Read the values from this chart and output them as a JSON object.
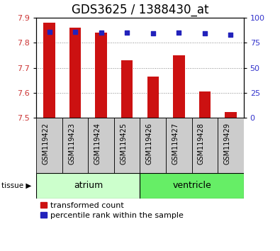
{
  "title": "GDS3625 / 1388430_at",
  "samples": [
    "GSM119422",
    "GSM119423",
    "GSM119424",
    "GSM119425",
    "GSM119426",
    "GSM119427",
    "GSM119428",
    "GSM119429"
  ],
  "transformed_counts": [
    7.88,
    7.86,
    7.84,
    7.73,
    7.665,
    7.75,
    7.605,
    7.525
  ],
  "percentile_ranks": [
    86,
    86,
    85,
    85,
    84,
    85,
    84,
    83
  ],
  "ylim_left": [
    7.5,
    7.9
  ],
  "ylim_right": [
    0,
    100
  ],
  "yticks_left": [
    7.5,
    7.6,
    7.7,
    7.8,
    7.9
  ],
  "yticks_right": [
    0,
    25,
    50,
    75,
    100
  ],
  "tissues": [
    {
      "label": "atrium",
      "start": 0,
      "end": 4,
      "color": "#ccffcc"
    },
    {
      "label": "ventricle",
      "start": 4,
      "end": 8,
      "color": "#66ee66"
    }
  ],
  "bar_color": "#cc1111",
  "dot_color": "#2222bb",
  "bar_width": 0.45,
  "base_value": 7.5,
  "tissue_label": "tissue",
  "legend_bar_label": "transformed count",
  "legend_dot_label": "percentile rank within the sample",
  "grid_color": "#888888",
  "plot_bg": "#ffffff",
  "tick_label_color_left": "#cc3333",
  "tick_label_color_right": "#3333cc",
  "title_fontsize": 12,
  "axis_fontsize": 8,
  "sample_fontsize": 7,
  "legend_fontsize": 8,
  "tissue_fontsize": 9
}
